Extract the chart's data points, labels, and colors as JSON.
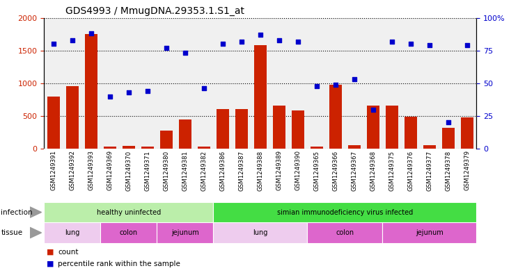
{
  "title": "GDS4993 / MmugDNA.29353.1.S1_at",
  "samples": [
    "GSM1249391",
    "GSM1249392",
    "GSM1249393",
    "GSM1249369",
    "GSM1249370",
    "GSM1249371",
    "GSM1249380",
    "GSM1249381",
    "GSM1249382",
    "GSM1249386",
    "GSM1249387",
    "GSM1249388",
    "GSM1249389",
    "GSM1249390",
    "GSM1249365",
    "GSM1249366",
    "GSM1249367",
    "GSM1249368",
    "GSM1249375",
    "GSM1249376",
    "GSM1249377",
    "GSM1249378",
    "GSM1249379"
  ],
  "counts": [
    800,
    960,
    1750,
    30,
    40,
    30,
    280,
    450,
    30,
    610,
    610,
    1580,
    660,
    580,
    30,
    980,
    50,
    660,
    660,
    490,
    60,
    320,
    480
  ],
  "percentiles": [
    80,
    83,
    88,
    40,
    43,
    44,
    77,
    73,
    46,
    80,
    82,
    87,
    83,
    82,
    48,
    49,
    53,
    30,
    82,
    80,
    79,
    20,
    79
  ],
  "ylim_left": [
    0,
    2000
  ],
  "ylim_right": [
    0,
    100
  ],
  "yticks_left": [
    0,
    500,
    1000,
    1500,
    2000
  ],
  "yticks_right": [
    0,
    25,
    50,
    75,
    100
  ],
  "bar_color": "#cc2200",
  "dot_color": "#0000cc",
  "infection_groups": [
    {
      "label": "healthy uninfected",
      "start": 0,
      "end": 9,
      "color": "#bbeeaa"
    },
    {
      "label": "simian immunodeficiency virus infected",
      "start": 9,
      "end": 23,
      "color": "#44dd44"
    }
  ],
  "tissue_groups": [
    {
      "label": "lung",
      "start": 0,
      "end": 3,
      "color": "#eeccee"
    },
    {
      "label": "colon",
      "start": 3,
      "end": 6,
      "color": "#dd66dd"
    },
    {
      "label": "jejunum",
      "start": 6,
      "end": 9,
      "color": "#dd66dd"
    },
    {
      "label": "lung",
      "start": 9,
      "end": 14,
      "color": "#eeccee"
    },
    {
      "label": "colon",
      "start": 14,
      "end": 18,
      "color": "#dd66dd"
    },
    {
      "label": "jejunum",
      "start": 18,
      "end": 23,
      "color": "#dd66dd"
    }
  ],
  "bg_color": "#e8e8e8",
  "plot_bg": "#f0f0f0",
  "xtick_bg": "#d8d8d8",
  "legend_count_color": "#cc2200",
  "legend_dot_color": "#0000cc"
}
